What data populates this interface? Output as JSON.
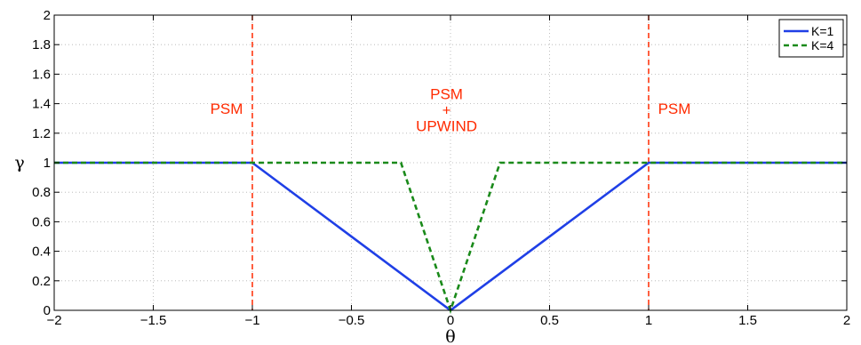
{
  "chart_data": {
    "type": "line",
    "xlabel": "θ",
    "ylabel": "γ",
    "xlim": [
      -2,
      2
    ],
    "ylim": [
      0,
      2
    ],
    "x_ticks": [
      -2,
      -1.5,
      -1,
      -0.5,
      0,
      0.5,
      1,
      1.5,
      2
    ],
    "x_tick_labels": [
      "−2",
      "−1.5",
      "−1",
      "−0.5",
      "0",
      "0.5",
      "1",
      "1.5",
      "2"
    ],
    "y_ticks": [
      0,
      0.2,
      0.4,
      0.6,
      0.8,
      1,
      1.2,
      1.4,
      1.6,
      1.8,
      2
    ],
    "y_tick_labels": [
      "0",
      "0.2",
      "0.4",
      "0.6",
      "0.8",
      "1",
      "1.2",
      "1.4",
      "1.6",
      "1.8",
      "2"
    ],
    "grid": true,
    "legend_position": "top-right",
    "series": [
      {
        "name": "K=1",
        "style": "solid",
        "color": "#1f3fe6",
        "x": [
          -2,
          -1,
          0,
          1,
          2
        ],
        "y": [
          1,
          1,
          0,
          1,
          1
        ]
      },
      {
        "name": "K=4",
        "style": "dashed",
        "color": "#1a8a1a",
        "x": [
          -2,
          -0.25,
          0,
          0.25,
          2
        ],
        "y": [
          1,
          1,
          0,
          1,
          1
        ]
      }
    ],
    "vlines": [
      {
        "x": -1,
        "color": "#ff2a00",
        "style": "dashed"
      },
      {
        "x": 1,
        "color": "#ff2a00",
        "style": "dashed"
      }
    ],
    "annotations": [
      {
        "lines": [
          "PSM"
        ],
        "x": -1.13,
        "y": 1.33,
        "color": "#ff2a00"
      },
      {
        "lines": [
          "PSM",
          "+",
          "UPWIND"
        ],
        "x": -0.02,
        "y": 1.43,
        "color": "#ff2a00"
      },
      {
        "lines": [
          "PSM"
        ],
        "x": 1.13,
        "y": 1.33,
        "color": "#ff2a00"
      }
    ]
  }
}
